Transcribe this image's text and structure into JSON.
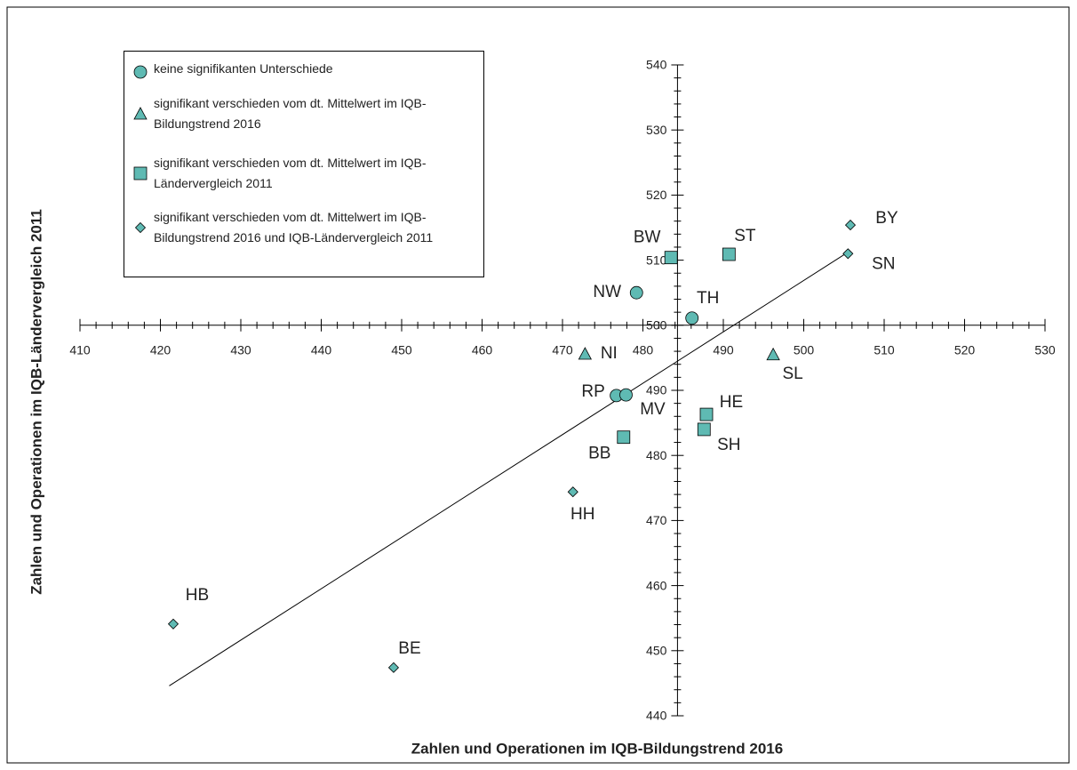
{
  "chart_data": {
    "type": "scatter",
    "xlabel": "Zahlen und Operationen im IQB-Bildungstrend 2016",
    "ylabel": "Zahlen und Operationen im IQB-Ländervergleich 2011",
    "xlim": [
      410,
      530
    ],
    "xticks": [
      410,
      420,
      430,
      440,
      450,
      460,
      470,
      480,
      490,
      500,
      510,
      520,
      530
    ],
    "ylim": [
      440,
      540
    ],
    "yticks": [
      440,
      450,
      460,
      470,
      480,
      490,
      500,
      510,
      520,
      530,
      540
    ],
    "x_axis_at": 500,
    "y_axis_at": 484.3,
    "minor_ticks_per_major": 5,
    "legend": "upper left",
    "trendline": {
      "x": [
        421.1,
        505.6
      ],
      "y": [
        444.6,
        511.3
      ]
    },
    "series": [
      {
        "name": "keine signifikanten Unterschiede",
        "marker": "circle",
        "color": "#5fbab3",
        "labels": [
          "NW",
          "TH",
          "RP",
          "MV"
        ],
        "x": [
          479.2,
          486.1,
          476.7,
          477.9
        ],
        "y": [
          505.0,
          501.1,
          489.2,
          489.3
        ]
      },
      {
        "name": "signifikant verschieden vom dt. Mittelwert im IQB-Bildungstrend 2016",
        "marker": "triangle",
        "color": "#5fbab3",
        "labels": [
          "NI",
          "SL"
        ],
        "x": [
          472.8,
          496.2
        ],
        "y": [
          495.6,
          495.5
        ]
      },
      {
        "name": "signifikant verschieden vom dt. Mittelwert im IQB-Ländervergleich 2011",
        "marker": "square",
        "color": "#5fbab3",
        "labels": [
          "ST",
          "BW",
          "HE",
          "SH",
          "BB"
        ],
        "x": [
          490.7,
          483.5,
          487.9,
          487.6,
          477.6
        ],
        "y": [
          510.9,
          510.4,
          486.3,
          484.0,
          482.8
        ]
      },
      {
        "name": "signifikant verschieden vom dt. Mittelwert im IQB-Bildungstrend 2016 und IQB-Ländervergleich 2011",
        "marker": "diamond",
        "color": "#5fbab3",
        "labels": [
          "BY",
          "SN",
          "HH",
          "HB",
          "BE"
        ],
        "x": [
          505.8,
          505.5,
          471.3,
          421.6,
          449.0
        ],
        "y": [
          515.4,
          511.0,
          474.4,
          454.1,
          447.4
        ]
      }
    ]
  }
}
